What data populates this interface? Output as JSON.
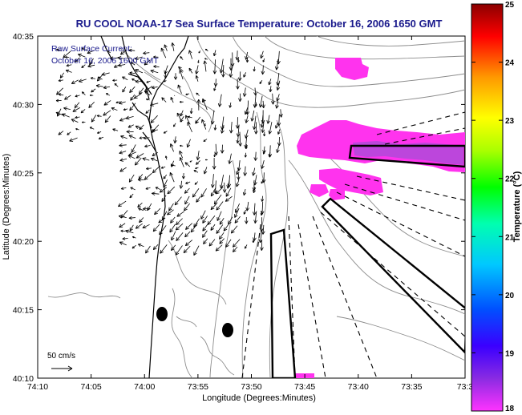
{
  "title": "RU COOL  NOAA-17  Sea Surface Temperature:  October 16, 2006 1650 GMT",
  "overlay": {
    "line1": "Raw Surface Current:",
    "line2": "October 16, 2006 1600 GMT"
  },
  "axes": {
    "xlabel": "Longitude (Degrees:Minutes)",
    "ylabel": "Latitude (Degrees:Minutes)",
    "x_ticks": [
      "74:10",
      "74:05",
      "74:00",
      "73:55",
      "73:50",
      "73:45",
      "73:40",
      "73:35",
      "73:3"
    ],
    "y_ticks": [
      "40:35",
      "40:30",
      "40:25",
      "40:20",
      "40:15",
      "40:10"
    ]
  },
  "scale_label": "50 cm/s",
  "colorbar": {
    "label": "Temperature (°C)",
    "min": 18,
    "max": 25,
    "ticks": [
      "25",
      "24",
      "23",
      "22",
      "21",
      "20",
      "19",
      "18"
    ]
  },
  "colors": {
    "title": "#1a1a8c",
    "overlay_text": "#1a1a8c",
    "sst_patch": "#ff33ee",
    "sst_warm_core": "#b04ad8",
    "land_lines": "#000000",
    "bathymetry": "#8c8c8c"
  }
}
